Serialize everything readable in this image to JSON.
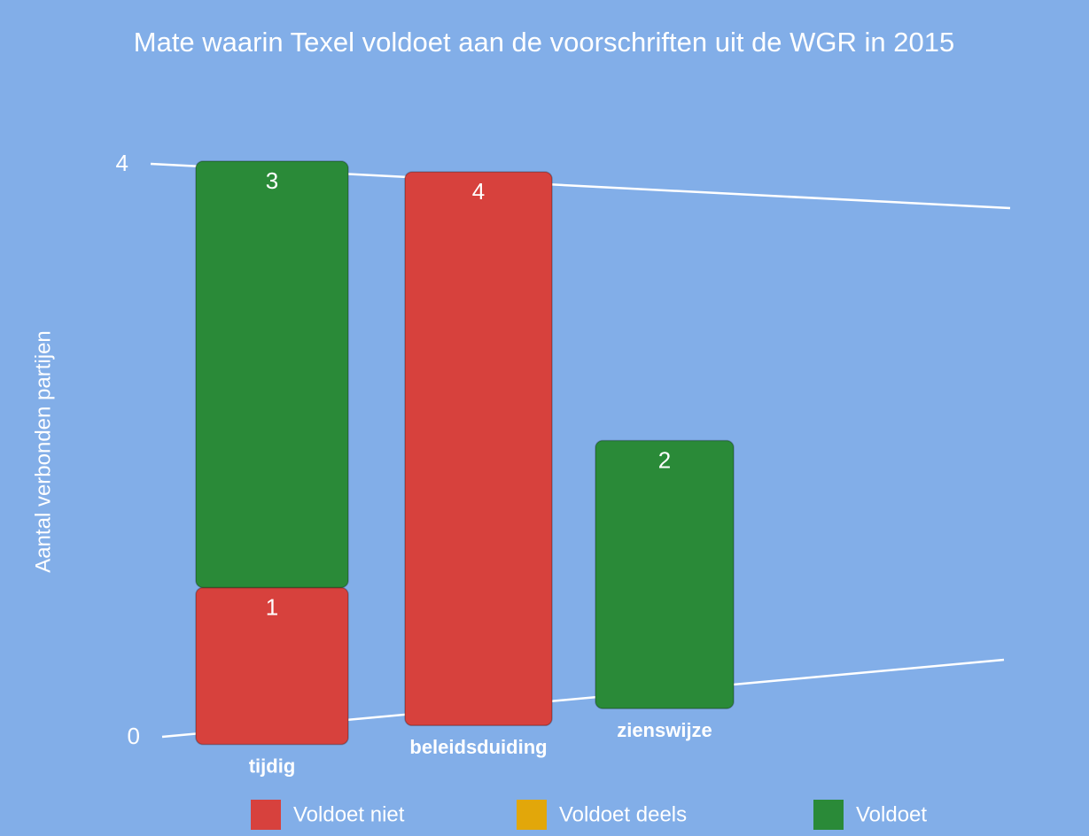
{
  "chart_data": {
    "type": "bar",
    "stacked": true,
    "title": "Mate waarin Texel voldoet aan de voorschriften uit de WGR in 2015",
    "y_label": "Aantal verbonden partijen",
    "categories": [
      "tijdig",
      "beleidsduiding",
      "zienswijze"
    ],
    "series": [
      {
        "name": "Voldoet niet",
        "color": "#d7413d",
        "values": [
          1,
          4,
          null
        ]
      },
      {
        "name": "Voldoet deels",
        "color": "#e2a70a",
        "values": [
          null,
          null,
          null
        ]
      },
      {
        "name": "Voldoet",
        "color": "#2a8a38",
        "values": [
          3,
          null,
          2
        ]
      }
    ],
    "ylim": [
      0,
      4
    ],
    "yticks": [
      0,
      4
    ],
    "grid": true,
    "legend": "bottom"
  }
}
